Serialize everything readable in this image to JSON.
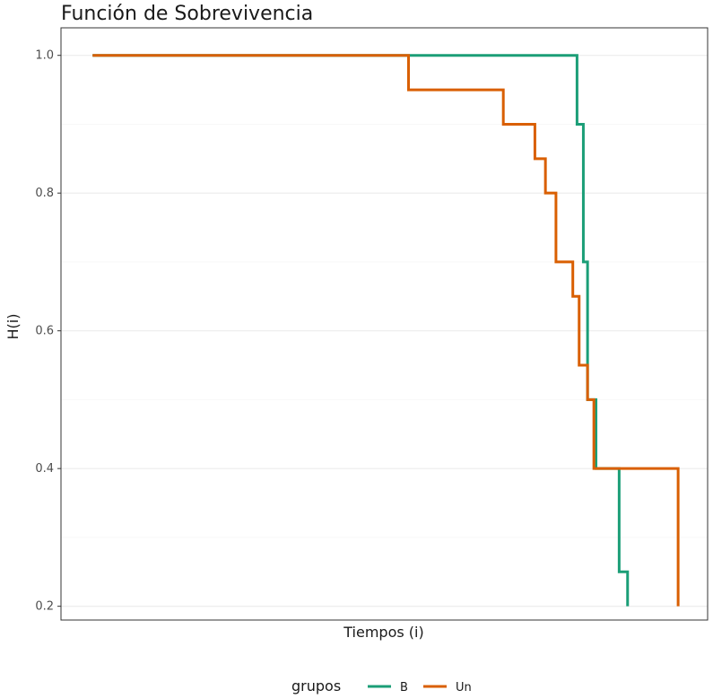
{
  "chart_data": {
    "type": "line",
    "step": true,
    "title": "Función de Sobrevivencia",
    "xlabel": "Tiempos (i)",
    "ylabel": "H(i)",
    "ylim": [
      0.18,
      1.04
    ],
    "yticks": [
      0.2,
      0.4,
      0.6,
      0.8,
      1.0
    ],
    "ytick_labels": [
      "0.2",
      "0.4",
      "0.6",
      "0.8",
      "1.0"
    ],
    "grid": true,
    "legend": {
      "title": "grupos",
      "position": "bottom"
    },
    "series": [
      {
        "name": "B",
        "color": "#1b9e77",
        "x": [
          0,
          23.0,
          23.3,
          23.5,
          23.9,
          25.0,
          25.4
        ],
        "y": [
          1.0,
          0.9,
          0.7,
          0.5,
          0.4,
          0.25,
          0.2
        ]
      },
      {
        "name": "Un",
        "color": "#d95f02",
        "x": [
          0,
          15.0,
          19.5,
          21.0,
          21.5,
          22.0,
          22.8,
          23.1,
          23.5,
          23.8,
          24.0,
          27.8
        ],
        "y": [
          1.0,
          0.95,
          0.9,
          0.85,
          0.8,
          0.7,
          0.65,
          0.55,
          0.5,
          0.4,
          0.4,
          0.2
        ]
      }
    ],
    "xlim": [
      -1.5,
      29.2
    ]
  }
}
